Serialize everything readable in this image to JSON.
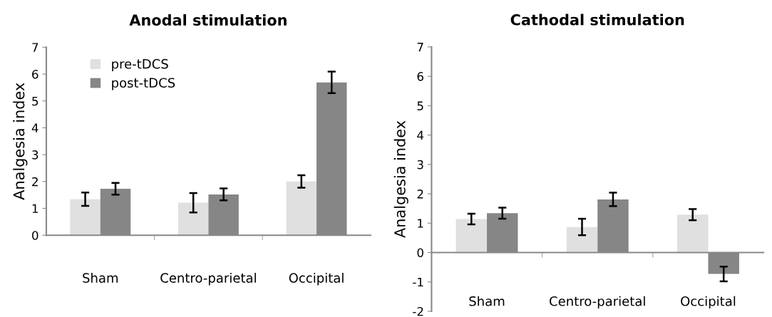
{
  "chart_data": [
    {
      "type": "bar",
      "title": "Anodal stimulation",
      "ylabel": "Analgesia index",
      "categories": [
        "Sham",
        "Centro-parietal",
        "Occipital"
      ],
      "ylim": [
        0,
        7
      ],
      "yticks": [
        0,
        1,
        2,
        3,
        4,
        5,
        6,
        7
      ],
      "legend": "top left",
      "series": [
        {
          "name": "pre-tDCS",
          "color": "#e0e0e0",
          "values": [
            1.34,
            1.21,
            2.0
          ],
          "errors": [
            0.25,
            0.36,
            0.23
          ]
        },
        {
          "name": "post-tDCS",
          "color": "#868686",
          "values": [
            1.73,
            1.52,
            5.69
          ],
          "errors": [
            0.22,
            0.22,
            0.4
          ]
        }
      ]
    },
    {
      "type": "bar",
      "title": "Cathodal stimulation",
      "ylabel": "Analgesia index",
      "categories": [
        "Sham",
        "Centro-parietal",
        "Occipital"
      ],
      "ylim": [
        -2,
        7
      ],
      "yticks": [
        -2,
        -1,
        0,
        1,
        2,
        3,
        4,
        5,
        6,
        7
      ],
      "series": [
        {
          "color": "#e0e0e0",
          "values": [
            1.14,
            0.87,
            1.29
          ],
          "errors": [
            0.18,
            0.28,
            0.19
          ]
        },
        {
          "color": "#868686",
          "values": [
            1.34,
            1.81,
            -0.73
          ],
          "errors": [
            0.19,
            0.23,
            0.25
          ]
        }
      ]
    }
  ]
}
